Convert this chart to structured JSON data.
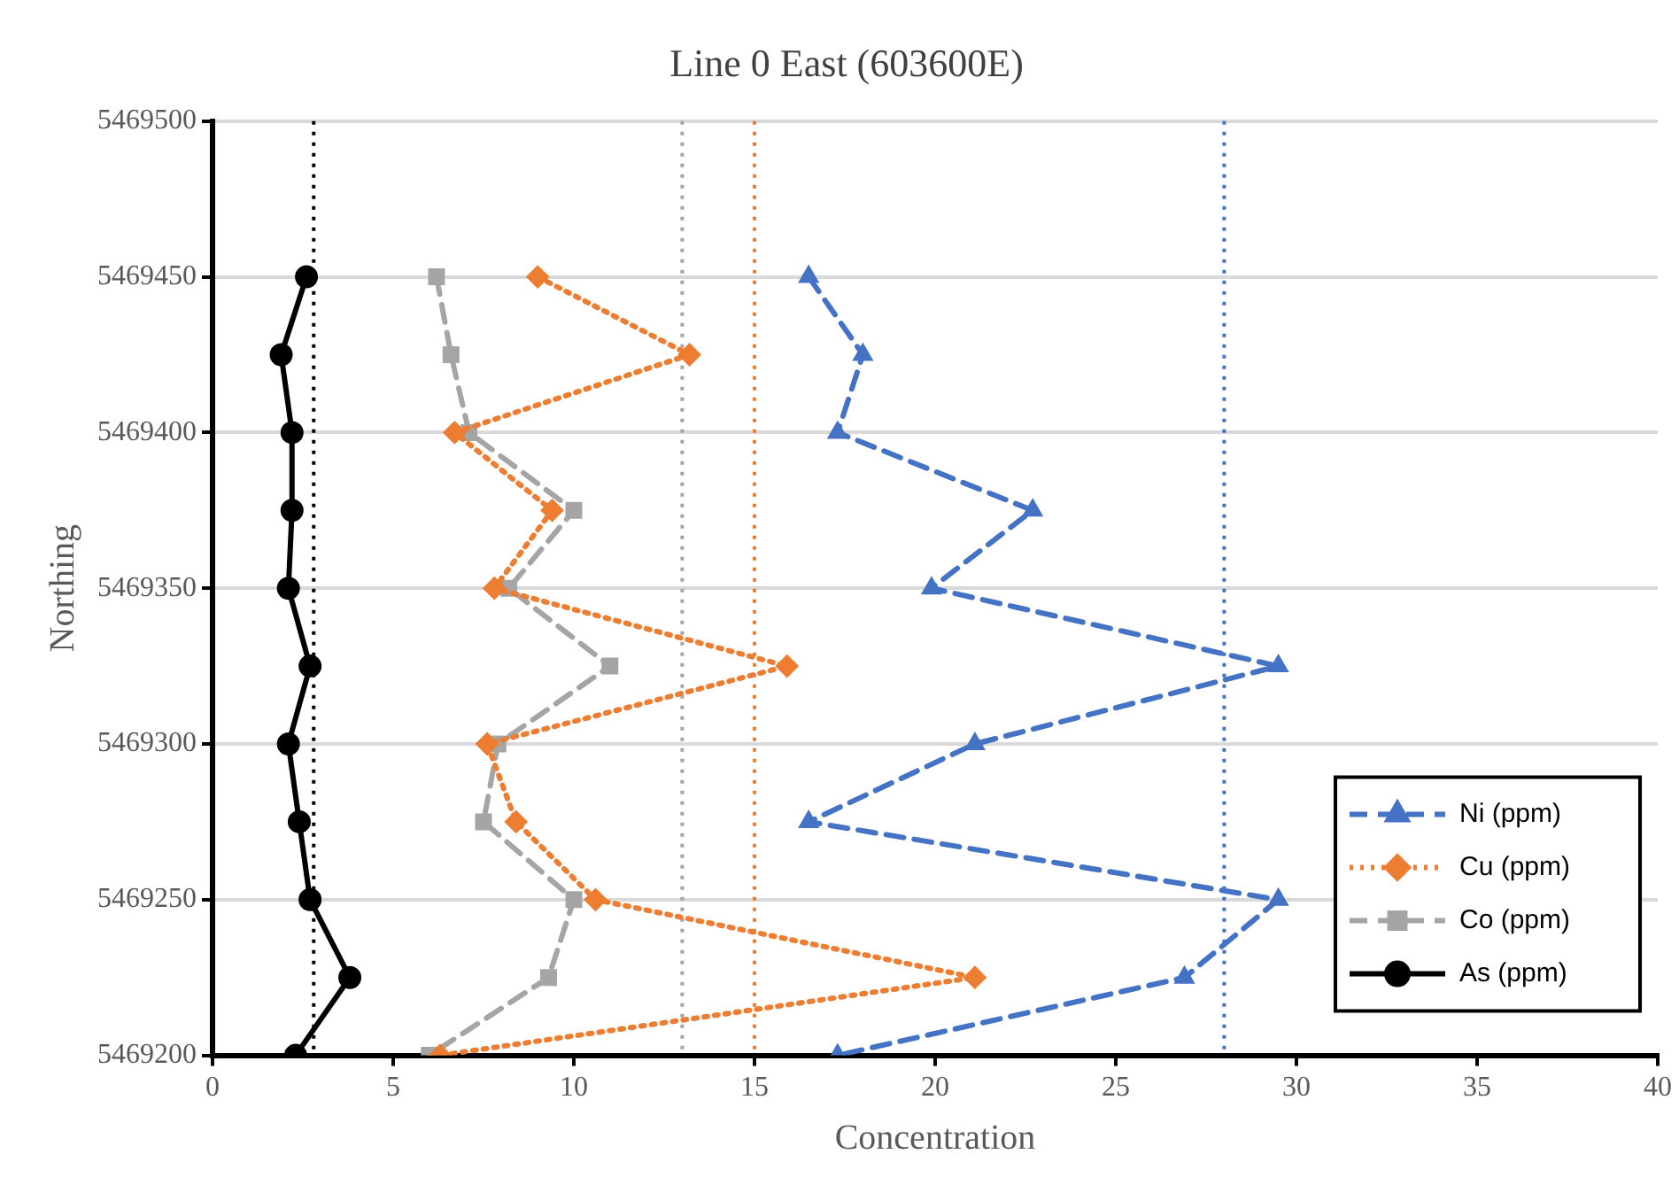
{
  "chart_data": {
    "type": "line",
    "title": "Line 0 East (603600E)",
    "xlabel": "Concentration",
    "ylabel": "Northing",
    "xlim": [
      0,
      40
    ],
    "xticks": [
      0,
      5,
      10,
      15,
      20,
      25,
      30,
      35,
      40
    ],
    "ylim": [
      5469200,
      5469500
    ],
    "yticks": [
      5469200,
      5469250,
      5469300,
      5469350,
      5469400,
      5469450,
      5469500
    ],
    "grid": "y",
    "legend": "bottom right",
    "series": [
      {
        "name": "Ni (ppm)",
        "color": "#4472c4",
        "marker": "triangle",
        "line_style": "dashed",
        "x": [
          16.5,
          18.0,
          17.3,
          22.7,
          19.9,
          29.5,
          21.1,
          16.5,
          29.5,
          26.9,
          17.3
        ],
        "values": [
          5469450,
          5469425,
          5469400,
          5469375,
          5469350,
          5469325,
          5469300,
          5469275,
          5469250,
          5469225,
          5469200
        ]
      },
      {
        "name": "Cu (ppm)",
        "color": "#ed7d31",
        "marker": "diamond",
        "line_style": "dotted",
        "x": [
          9.0,
          13.2,
          6.7,
          9.4,
          7.8,
          15.9,
          7.6,
          8.4,
          10.6,
          21.1,
          6.3
        ],
        "values": [
          5469450,
          5469425,
          5469400,
          5469375,
          5469350,
          5469325,
          5469300,
          5469275,
          5469250,
          5469225,
          5469200
        ]
      },
      {
        "name": "Co (ppm)",
        "color": "#a5a5a5",
        "marker": "square",
        "line_style": "dashed",
        "x": [
          6.2,
          6.6,
          7.1,
          10.0,
          8.2,
          11.0,
          7.9,
          7.5,
          10.0,
          9.3,
          6.0
        ],
        "values": [
          5469450,
          5469425,
          5469400,
          5469375,
          5469350,
          5469325,
          5469300,
          5469275,
          5469250,
          5469225,
          5469200
        ]
      },
      {
        "name": "As (ppm)",
        "color": "#000000",
        "marker": "circle",
        "line_style": "solid",
        "x": [
          2.6,
          1.9,
          2.2,
          2.2,
          2.1,
          2.7,
          2.1,
          2.4,
          2.7,
          3.8,
          2.3
        ],
        "values": [
          5469450,
          5469425,
          5469400,
          5469375,
          5469350,
          5469325,
          5469300,
          5469275,
          5469250,
          5469225,
          5469200
        ]
      }
    ],
    "ref_lines": [
      {
        "axis": "x",
        "value": 2.8,
        "color": "#000000",
        "line_style": "dotted"
      },
      {
        "axis": "x",
        "value": 13,
        "color": "#a5a5a5",
        "line_style": "dotted"
      },
      {
        "axis": "x",
        "value": 15,
        "color": "#ed7d31",
        "line_style": "dotted"
      },
      {
        "axis": "x",
        "value": 28,
        "color": "#4472c4",
        "line_style": "dotted"
      }
    ]
  }
}
